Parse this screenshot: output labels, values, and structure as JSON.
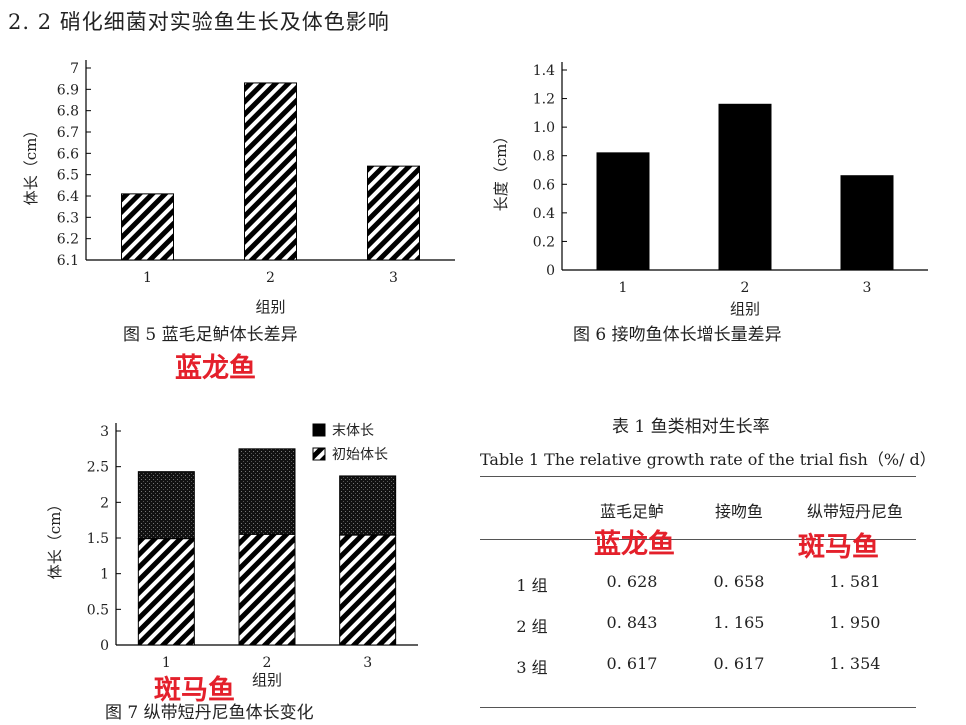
{
  "section_title": "2. 2   硝化细菌对实验鱼生长及体色影响",
  "figure5": {
    "caption": "图 5   蓝毛足鲈体长差异",
    "ylabel": "体长（cm）",
    "xlabel": "组别",
    "ticks": [
      "6.1",
      "6.2",
      "6.3",
      "6.4",
      "6.5",
      "6.6",
      "6.7",
      "6.8",
      "6.9",
      "7"
    ],
    "annotation": "蓝龙鱼"
  },
  "figure6": {
    "caption": "图 6   接吻鱼体长增长量差异",
    "ylabel": "长度（cm）",
    "xlabel": "组别",
    "ticks": [
      "0",
      "0.2",
      "0.4",
      "0.6",
      "0.8",
      "1.0",
      "1.2",
      "1.4"
    ]
  },
  "figure7": {
    "caption": "图 7   纵带短丹尼鱼体长变化",
    "ylabel": "体长（cm）",
    "xlabel": "组别",
    "ticks": [
      "0",
      "0.5",
      "1",
      "1.5",
      "2",
      "2.5",
      "3"
    ],
    "legend": [
      "末体长",
      "初始体长"
    ],
    "annotation": "斑马鱼"
  },
  "table": {
    "title": "表 1   鱼类相对生长率",
    "subtitle": "Table 1  The relative growth rate of the trial fish（%/ d）",
    "headers": [
      "",
      "蓝毛足鲈",
      "接吻鱼",
      "纵带短丹尼鱼"
    ],
    "rows": [
      [
        "1 组",
        "0. 628",
        "0. 658",
        "1. 581"
      ],
      [
        "2 组",
        "0. 843",
        "1. 165",
        "1. 950"
      ],
      [
        "3 组",
        "0. 617",
        "0. 617",
        "1. 354"
      ]
    ],
    "annotations": [
      "蓝龙鱼",
      "斑马鱼"
    ]
  },
  "chart_data": [
    {
      "type": "bar",
      "title": "图 5   蓝毛足鲈体长差异",
      "xlabel": "组别",
      "ylabel": "体长（cm）",
      "categories": [
        "1",
        "2",
        "3"
      ],
      "values": [
        6.41,
        6.93,
        6.54
      ],
      "ylim": [
        6.1,
        7.0
      ],
      "grid": false
    },
    {
      "type": "bar",
      "title": "图 6   接吻鱼体长增长量差异",
      "xlabel": "组别",
      "ylabel": "长度（cm）",
      "categories": [
        "1",
        "2",
        "3"
      ],
      "values": [
        0.82,
        1.16,
        0.66
      ],
      "ylim": [
        0,
        1.4
      ],
      "grid": false
    },
    {
      "type": "bar",
      "title": "图 7   纵带短丹尼鱼体长变化",
      "xlabel": "组别",
      "ylabel": "体长（cm）",
      "categories": [
        "1",
        "2",
        "3"
      ],
      "series": [
        {
          "name": "末体长",
          "values": [
            2.43,
            2.75,
            2.37
          ]
        },
        {
          "name": "初始体长",
          "values": [
            1.49,
            1.55,
            1.54
          ]
        }
      ],
      "ylim": [
        0,
        3
      ],
      "legend": "top-right",
      "grid": false
    }
  ],
  "colors": {
    "annotation_red": "#e4202b",
    "bar_black": "#000000"
  }
}
